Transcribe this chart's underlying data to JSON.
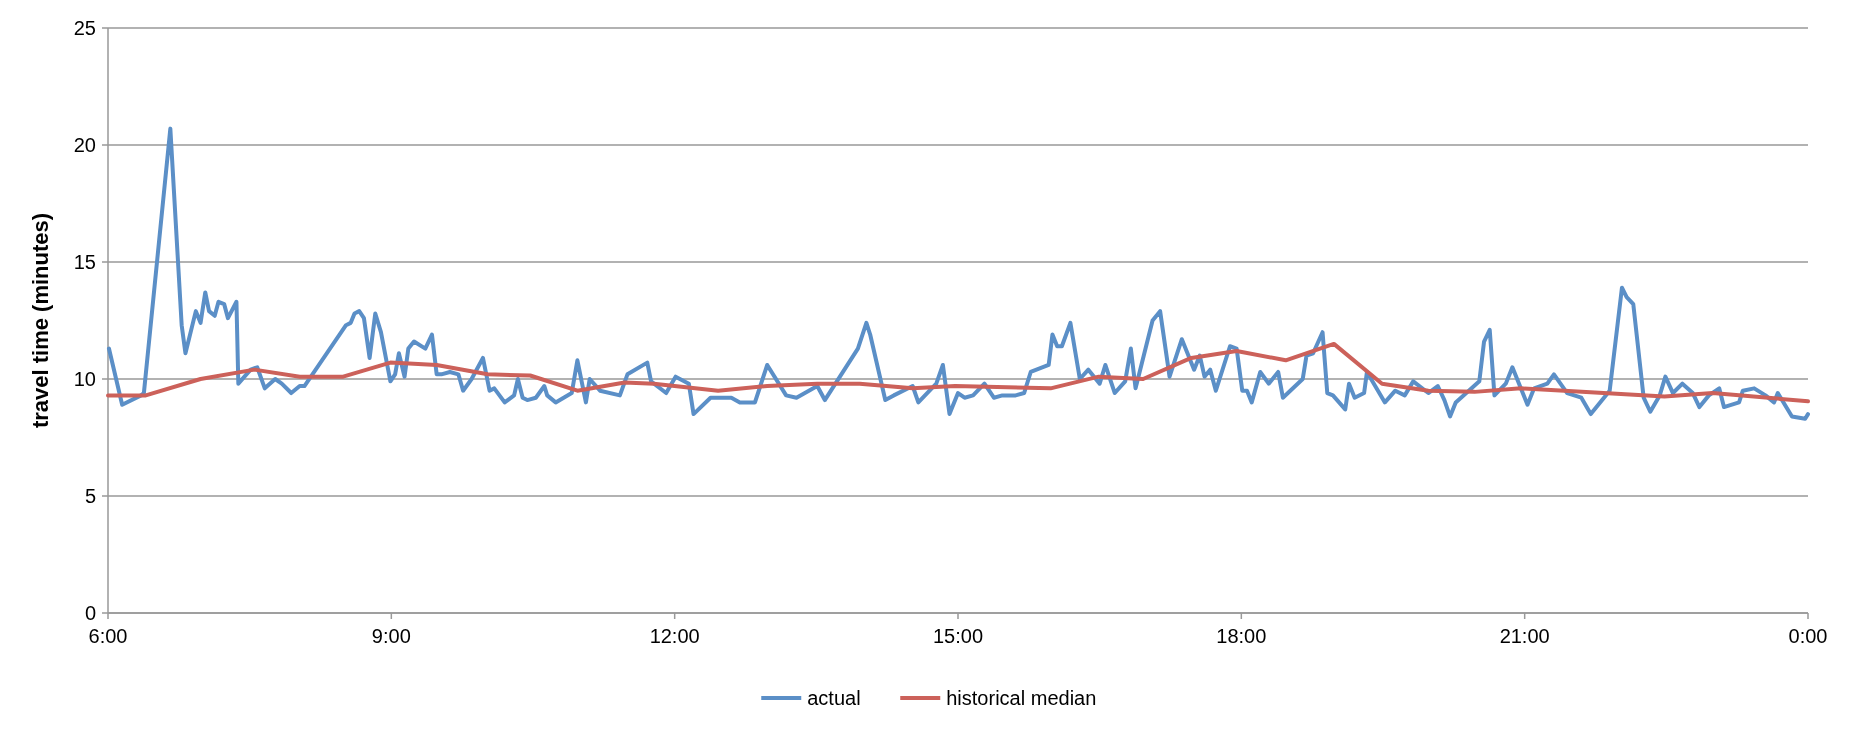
{
  "chart_data": {
    "type": "line",
    "ylabel": "travel time (minutes)",
    "xlim": [
      6,
      24
    ],
    "xticks": [
      {
        "value": 6,
        "label": "6:00"
      },
      {
        "value": 9,
        "label": "9:00"
      },
      {
        "value": 12,
        "label": "12:00"
      },
      {
        "value": 15,
        "label": "15:00"
      },
      {
        "value": 18,
        "label": "18:00"
      },
      {
        "value": 21,
        "label": "21:00"
      },
      {
        "value": 24,
        "label": "0:00"
      }
    ],
    "ylim": [
      0,
      25
    ],
    "yticks": [
      0,
      5,
      10,
      15,
      20,
      25
    ],
    "grid": "y",
    "legend": "bottom",
    "marker": "none",
    "line_style": "solid",
    "series": [
      {
        "name": "actual",
        "color": "#5b8fc7",
        "x": [
          6.01,
          6.15,
          6.35,
          6.38,
          6.66,
          6.78,
          6.82,
          6.93,
          6.98,
          7.03,
          7.07,
          7.13,
          7.17,
          7.23,
          7.27,
          7.36,
          7.38,
          7.51,
          7.58,
          7.66,
          7.77,
          7.84,
          7.94,
          8.03,
          8.08,
          8.52,
          8.57,
          8.61,
          8.66,
          8.71,
          8.77,
          8.83,
          8.89,
          8.99,
          9.04,
          9.08,
          9.14,
          9.18,
          9.24,
          9.36,
          9.43,
          9.48,
          9.53,
          9.62,
          9.71,
          9.76,
          9.85,
          9.97,
          10.04,
          10.09,
          10.2,
          10.3,
          10.34,
          10.39,
          10.44,
          10.53,
          10.62,
          10.65,
          10.74,
          10.91,
          10.97,
          11.06,
          11.1,
          11.21,
          11.42,
          11.5,
          11.71,
          11.75,
          11.91,
          12.01,
          12.15,
          12.2,
          12.38,
          12.6,
          12.69,
          12.85,
          12.98,
          13.18,
          13.29,
          13.51,
          13.59,
          13.94,
          14.03,
          14.07,
          14.23,
          14.32,
          14.52,
          14.58,
          14.77,
          14.84,
          14.91,
          15.0,
          15.07,
          15.16,
          15.28,
          15.38,
          15.47,
          15.61,
          15.7,
          15.77,
          15.96,
          16.0,
          16.05,
          16.1,
          16.19,
          16.29,
          16.38,
          16.5,
          16.56,
          16.66,
          16.77,
          16.83,
          16.88,
          17.06,
          17.14,
          17.24,
          17.37,
          17.5,
          17.56,
          17.61,
          17.67,
          17.73,
          17.88,
          17.95,
          18.01,
          18.06,
          18.11,
          18.2,
          18.29,
          18.39,
          18.44,
          18.65,
          18.69,
          18.76,
          18.86,
          18.91,
          18.97,
          19.1,
          19.14,
          19.2,
          19.3,
          19.33,
          19.52,
          19.63,
          19.73,
          19.82,
          19.98,
          20.08,
          20.15,
          20.21,
          20.27,
          20.52,
          20.57,
          20.63,
          20.68,
          20.8,
          20.87,
          21.03,
          21.1,
          21.24,
          21.31,
          21.45,
          21.6,
          21.7,
          21.9,
          22.03,
          22.08,
          22.15,
          22.26,
          22.33,
          22.43,
          22.49,
          22.57,
          22.67,
          22.78,
          22.85,
          22.95,
          23.06,
          23.11,
          23.27,
          23.31,
          23.43,
          23.55,
          23.64,
          23.68,
          23.83,
          23.97,
          24.0
        ],
        "values": [
          11.3,
          8.9,
          9.3,
          9.4,
          20.7,
          12.3,
          11.1,
          12.9,
          12.4,
          13.7,
          12.9,
          12.7,
          13.3,
          13.2,
          12.6,
          13.3,
          9.8,
          10.4,
          10.5,
          9.6,
          10.0,
          9.8,
          9.4,
          9.7,
          9.7,
          12.3,
          12.4,
          12.8,
          12.9,
          12.6,
          10.9,
          12.8,
          12.0,
          9.9,
          10.2,
          11.1,
          10.1,
          11.3,
          11.6,
          11.3,
          11.9,
          10.2,
          10.2,
          10.3,
          10.2,
          9.5,
          10.0,
          10.9,
          9.5,
          9.6,
          9.0,
          9.3,
          10.0,
          9.2,
          9.1,
          9.2,
          9.7,
          9.3,
          9.0,
          9.4,
          10.8,
          9.0,
          10.0,
          9.5,
          9.3,
          10.2,
          10.7,
          9.9,
          9.4,
          10.1,
          9.8,
          8.5,
          9.2,
          9.2,
          9.0,
          9.0,
          10.6,
          9.3,
          9.2,
          9.7,
          9.1,
          11.3,
          12.4,
          11.9,
          9.1,
          9.3,
          9.7,
          9.0,
          9.8,
          10.6,
          8.5,
          9.4,
          9.2,
          9.3,
          9.8,
          9.2,
          9.3,
          9.3,
          9.4,
          10.3,
          10.6,
          11.9,
          11.4,
          11.4,
          12.4,
          10.0,
          10.4,
          9.8,
          10.6,
          9.4,
          9.9,
          11.3,
          9.6,
          12.5,
          12.9,
          10.1,
          11.7,
          10.4,
          11.0,
          10.1,
          10.4,
          9.5,
          11.4,
          11.3,
          9.5,
          9.5,
          9.0,
          10.3,
          9.8,
          10.3,
          9.2,
          10.0,
          11.0,
          11.1,
          12.0,
          9.4,
          9.3,
          8.7,
          9.8,
          9.2,
          9.4,
          10.3,
          9.0,
          9.5,
          9.3,
          9.9,
          9.4,
          9.7,
          9.1,
          8.4,
          9.0,
          9.9,
          11.6,
          12.1,
          9.3,
          9.8,
          10.5,
          8.9,
          9.6,
          9.8,
          10.2,
          9.4,
          9.2,
          8.5,
          9.5,
          13.9,
          13.5,
          13.2,
          9.2,
          8.6,
          9.3,
          10.1,
          9.4,
          9.8,
          9.4,
          8.8,
          9.3,
          9.6,
          8.8,
          9.0,
          9.5,
          9.6,
          9.3,
          9.0,
          9.4,
          8.4,
          8.3,
          8.5
        ]
      },
      {
        "name": "historical median",
        "color": "#cc615a",
        "x": [
          6.0,
          6.4,
          6.98,
          7.55,
          8.03,
          8.49,
          8.99,
          9.48,
          10.02,
          10.47,
          10.97,
          11.47,
          11.78,
          12.46,
          12.98,
          13.51,
          13.96,
          14.52,
          14.97,
          15.98,
          16.49,
          16.96,
          17.47,
          17.95,
          18.47,
          18.98,
          19.49,
          19.98,
          20.47,
          20.96,
          21.42,
          22.48,
          22.99,
          24.0
        ],
        "values": [
          9.3,
          9.3,
          10.0,
          10.4,
          10.1,
          10.1,
          10.7,
          10.6,
          10.2,
          10.15,
          9.5,
          9.85,
          9.8,
          9.5,
          9.7,
          9.8,
          9.8,
          9.6,
          9.7,
          9.6,
          10.1,
          10.0,
          10.9,
          11.2,
          10.8,
          11.5,
          9.8,
          9.5,
          9.45,
          9.6,
          9.5,
          9.25,
          9.4,
          9.05
        ]
      }
    ]
  }
}
